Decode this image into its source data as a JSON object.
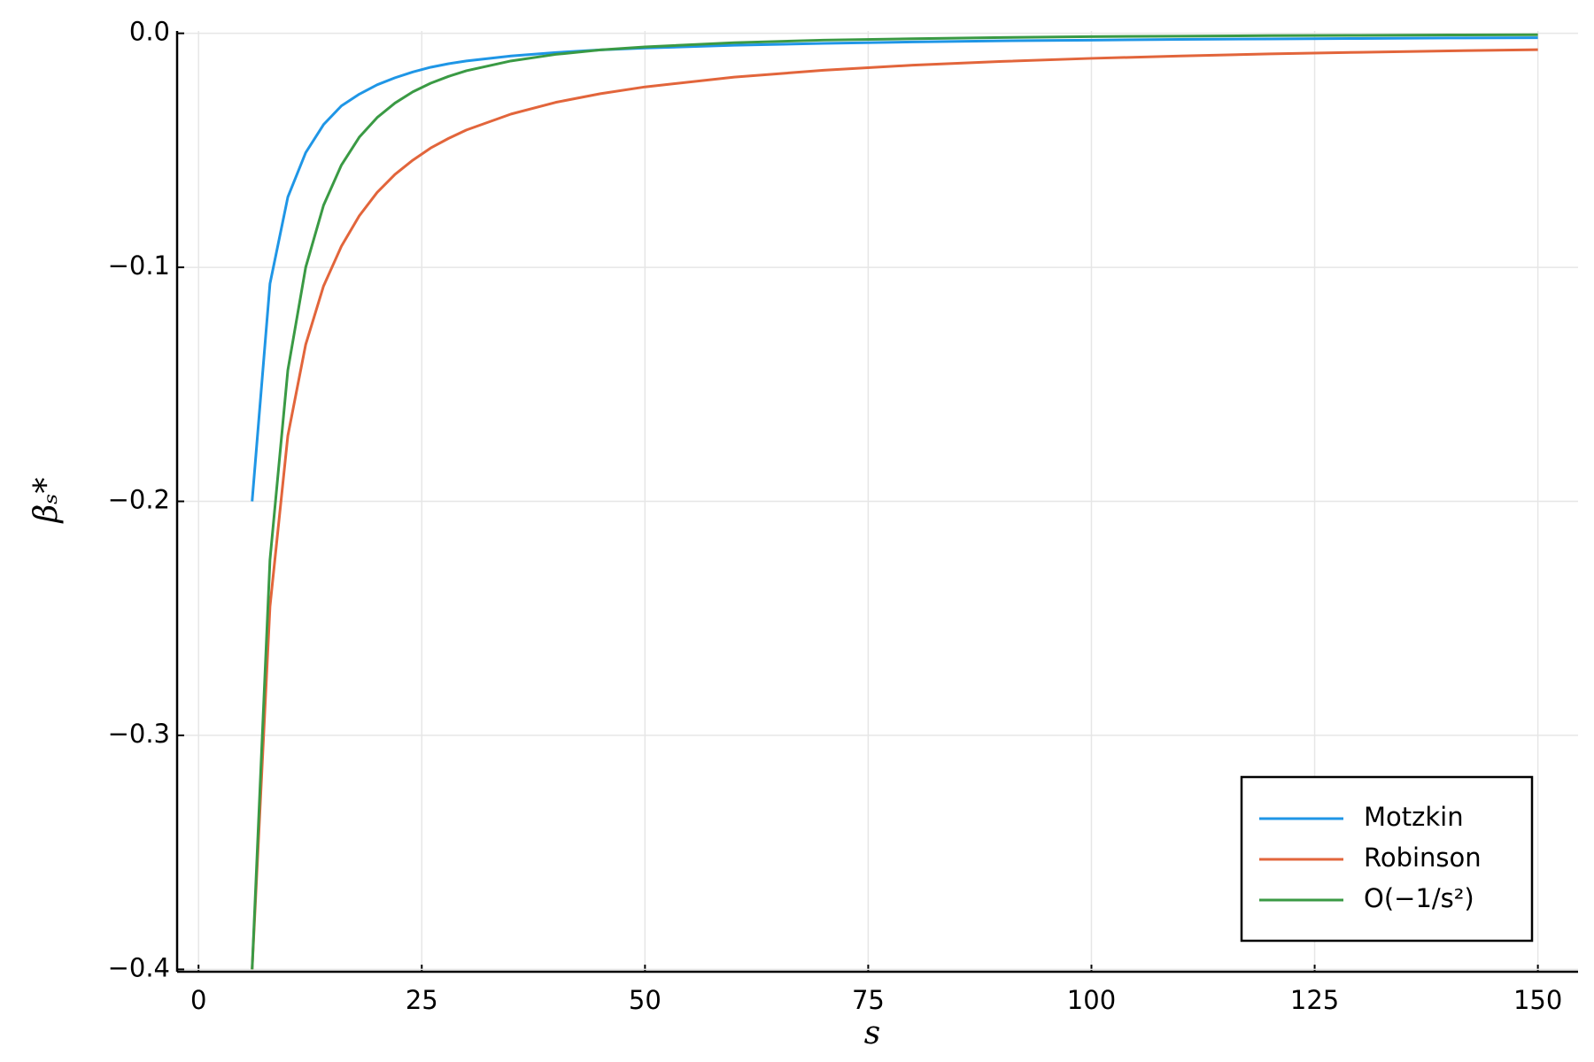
{
  "chart_data": {
    "type": "line",
    "xlabel": "s",
    "ylabel": "βₛ*",
    "x": [
      6,
      8,
      10,
      12,
      14,
      16,
      18,
      20,
      22,
      24,
      26,
      28,
      30,
      35,
      40,
      45,
      50,
      60,
      70,
      80,
      90,
      100,
      110,
      120,
      130,
      140,
      150
    ],
    "series": [
      {
        "name": "Motzkin",
        "color": "#1f96e6",
        "values": [
          -0.2,
          -0.107,
          -0.07,
          -0.051,
          -0.039,
          -0.031,
          -0.026,
          -0.022,
          -0.019,
          -0.0165,
          -0.0145,
          -0.013,
          -0.0118,
          -0.0097,
          -0.0082,
          -0.0071,
          -0.0063,
          -0.0051,
          -0.0043,
          -0.0037,
          -0.0032,
          -0.0029,
          -0.0026,
          -0.0024,
          -0.0022,
          -0.002,
          -0.0019
        ]
      },
      {
        "name": "Robinson",
        "color": "#e2653b",
        "values": [
          -0.4,
          -0.245,
          -0.172,
          -0.133,
          -0.108,
          -0.091,
          -0.078,
          -0.068,
          -0.0603,
          -0.0542,
          -0.049,
          -0.0449,
          -0.0413,
          -0.0345,
          -0.0295,
          -0.0258,
          -0.0229,
          -0.0187,
          -0.0158,
          -0.0136,
          -0.012,
          -0.0107,
          -0.0097,
          -0.0088,
          -0.0081,
          -0.0075,
          -0.007
        ]
      },
      {
        "name": "O(−1/s²)",
        "color": "#3a9a44",
        "values": [
          -0.4,
          -0.225,
          -0.144,
          -0.1,
          -0.0735,
          -0.0563,
          -0.0444,
          -0.036,
          -0.0298,
          -0.025,
          -0.0213,
          -0.0184,
          -0.016,
          -0.0118,
          -0.009,
          -0.0071,
          -0.0058,
          -0.004,
          -0.0029,
          -0.0023,
          -0.0018,
          -0.0014,
          -0.0012,
          -0.001,
          -0.0009,
          -0.0007,
          -0.0006
        ]
      }
    ],
    "xlim": [
      -2.4,
      154.5
    ],
    "ylim": [
      -0.401,
      0.001
    ],
    "xticks": [
      0,
      25,
      50,
      75,
      100,
      125,
      150
    ],
    "yticks": [
      {
        "value": 0,
        "label": "0.0"
      },
      {
        "value": -0.1,
        "label": "−0.1"
      },
      {
        "value": -0.2,
        "label": "−0.2"
      },
      {
        "value": -0.3,
        "label": "−0.3"
      },
      {
        "value": -0.4,
        "label": "−0.4"
      }
    ],
    "grid": true,
    "legend": "bottom right"
  }
}
